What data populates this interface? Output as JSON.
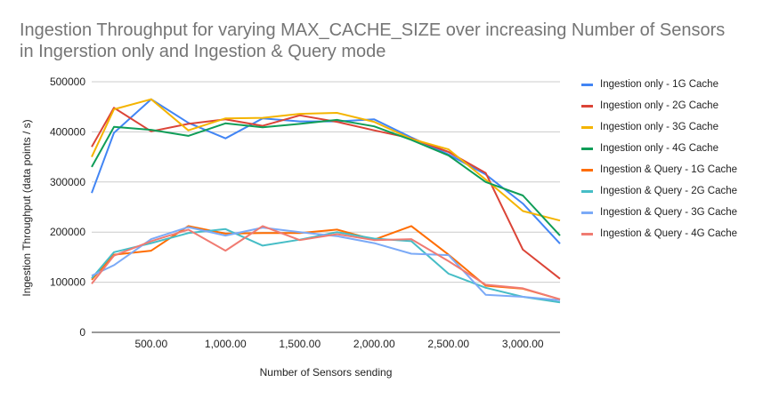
{
  "chart_data": {
    "type": "line",
    "title_lines": [
      "Ingestion Throughput for varying MAX_CACHE_SIZE over increasing Number of Sensors",
      "in Ingerstion only and Ingestion & Query mode"
    ],
    "xlabel": "Number of Sensors sending",
    "ylabel": "Ingestion Throughput (data points / s)",
    "xlim": [
      100,
      3250
    ],
    "ylim": [
      0,
      500000
    ],
    "x_ticks": [
      500,
      1000,
      1500,
      2000,
      2500,
      3000
    ],
    "x_tick_labels": [
      "500.00",
      "1,000.00",
      "1,500.00",
      "2,000.00",
      "2,500.00",
      "3,000.00"
    ],
    "y_ticks": [
      0,
      100000,
      200000,
      300000,
      400000,
      500000
    ],
    "y_tick_labels": [
      "0",
      "100000",
      "200000",
      "300000",
      "400000",
      "500000"
    ],
    "grid": true,
    "legend_position": "right",
    "x": [
      100,
      250,
      500,
      750,
      1000,
      1250,
      1500,
      1750,
      2000,
      2250,
      2500,
      2750,
      3000,
      3250
    ],
    "series": [
      {
        "name": "Ingestion only - 1G Cache",
        "color": "#4285f4",
        "values": [
          278000,
          398000,
          465000,
          418000,
          387000,
          427000,
          421000,
          421000,
          425000,
          389000,
          355000,
          315000,
          257000,
          177000
        ]
      },
      {
        "name": "Ingestion only - 2G Cache",
        "color": "#db4437",
        "values": [
          370000,
          448000,
          401000,
          416000,
          425000,
          412000,
          433000,
          420000,
          403000,
          387000,
          360000,
          318000,
          165000,
          107000
        ]
      },
      {
        "name": "Ingestion only - 3G Cache",
        "color": "#f4b400",
        "values": [
          350000,
          445000,
          465000,
          403000,
          427000,
          428000,
          436000,
          438000,
          420000,
          386000,
          365000,
          305000,
          242000,
          223000
        ]
      },
      {
        "name": "Ingestion only - 4G Cache",
        "color": "#0f9d58",
        "values": [
          330000,
          410000,
          404000,
          392000,
          417000,
          409000,
          416000,
          424000,
          411000,
          384000,
          353000,
          300000,
          273000,
          193000
        ]
      },
      {
        "name": "Ingestion & Query - 1G Cache",
        "color": "#ff6d01",
        "values": [
          105000,
          155000,
          163000,
          212000,
          197000,
          198000,
          198000,
          205000,
          185000,
          212000,
          155000,
          93000,
          87000,
          66000
        ]
      },
      {
        "name": "Ingestion & Query - 2G Cache",
        "color": "#46bdc6",
        "values": [
          108000,
          160000,
          178000,
          198000,
          206000,
          173000,
          185000,
          200000,
          187000,
          182000,
          117000,
          89000,
          71000,
          60000
        ]
      },
      {
        "name": "Ingestion & Query - 3G Cache",
        "color": "#7baaf7",
        "values": [
          113000,
          134000,
          186000,
          210000,
          193000,
          209000,
          200000,
          192000,
          178000,
          157000,
          154000,
          75000,
          71000,
          64000
        ]
      },
      {
        "name": "Ingestion & Query - 4G Cache",
        "color": "#f07b72",
        "values": [
          97000,
          153000,
          182000,
          205000,
          163000,
          212000,
          184000,
          196000,
          184000,
          186000,
          142000,
          95000,
          88000,
          66000
        ]
      }
    ]
  }
}
